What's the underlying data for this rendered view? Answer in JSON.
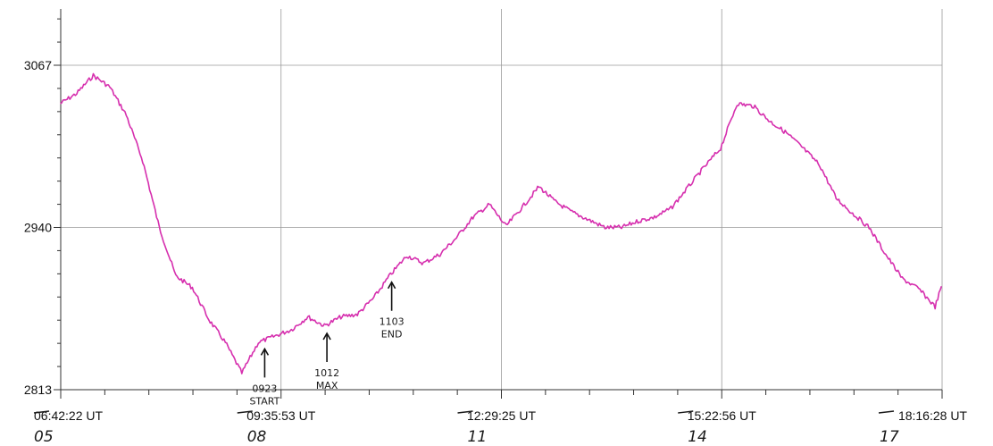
{
  "chart_data": {
    "type": "line",
    "title": "",
    "xlabel": "",
    "ylabel": "",
    "ylim": [
      2813,
      3067
    ],
    "y_tick_labels": [
      "3067",
      "2940",
      "2813"
    ],
    "x_tick_labels": [
      "06:42:22 UT",
      "09:35:53 UT",
      "12:29:25 UT",
      "15:22:56 UT",
      "18:16:28 UT"
    ],
    "x_day_labels": [
      "05",
      "08",
      "11",
      "14",
      "17"
    ],
    "grid": true,
    "series": [
      {
        "color": "#d62fae",
        "x": [
          "06:42",
          "06:55",
          "07:08",
          "07:21",
          "07:34",
          "07:47",
          "08:00",
          "08:13",
          "08:26",
          "08:39",
          "08:52",
          "09:05",
          "09:18",
          "09:31",
          "09:44",
          "09:57",
          "10:10",
          "10:23",
          "10:36",
          "10:49",
          "11:02",
          "11:15",
          "11:28",
          "11:41",
          "11:54",
          "12:07",
          "12:20",
          "12:33",
          "12:46",
          "12:59",
          "13:12",
          "13:25",
          "13:38",
          "13:51",
          "14:04",
          "14:17",
          "14:30",
          "14:43",
          "14:56",
          "15:09",
          "15:22",
          "15:35",
          "15:48",
          "16:01",
          "16:14",
          "16:27",
          "16:40",
          "16:53",
          "17:06",
          "17:19",
          "17:32",
          "17:45",
          "17:58",
          "18:11",
          "18:16"
        ],
        "values": [
          3037,
          3045,
          3059,
          3050,
          3028,
          2992,
          2940,
          2902,
          2893,
          2868,
          2850,
          2826,
          2850,
          2855,
          2860,
          2870,
          2863,
          2870,
          2872,
          2885,
          2903,
          2918,
          2912,
          2919,
          2932,
          2948,
          2958,
          2941,
          2956,
          2972,
          2960,
          2952,
          2946,
          2940,
          2940,
          2945,
          2948,
          2955,
          2971,
          2987,
          3002,
          3037,
          3035,
          3023,
          3014,
          3002,
          2989,
          2963,
          2951,
          2940,
          2919,
          2900,
          2892,
          2878,
          2894
        ]
      }
    ],
    "annotations": [
      {
        "time": "0923",
        "label": "START"
      },
      {
        "time": "1012",
        "label": "MAX"
      },
      {
        "time": "1103",
        "label": "END"
      }
    ]
  }
}
